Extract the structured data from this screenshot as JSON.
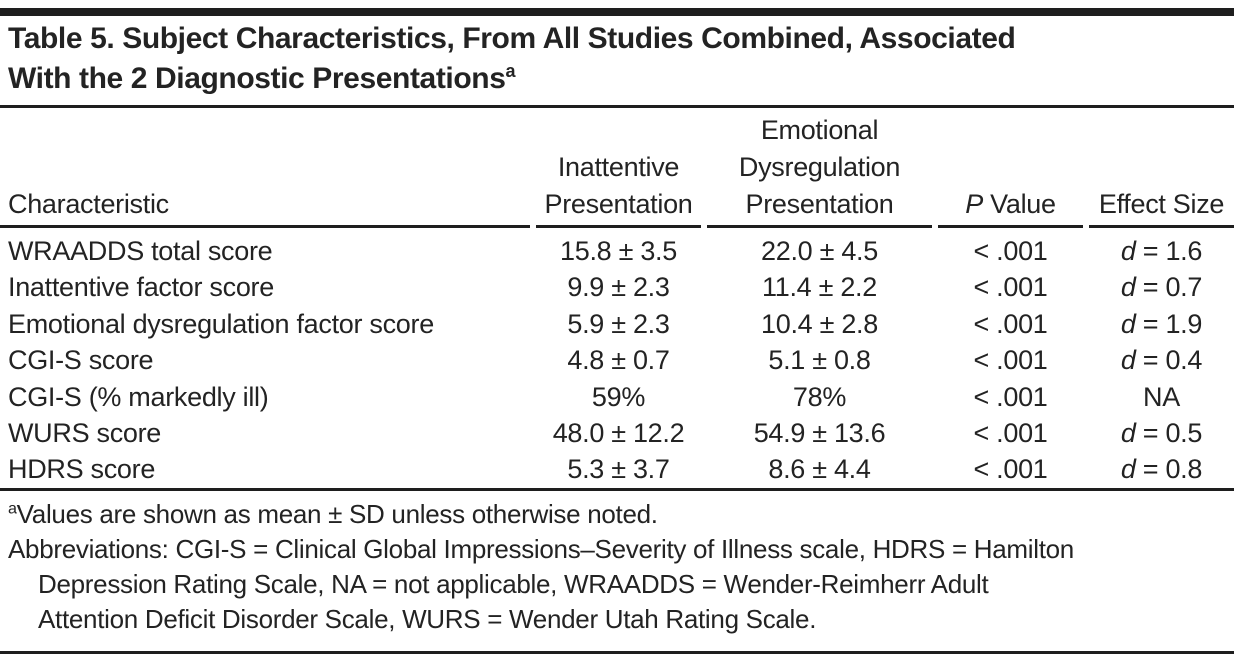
{
  "title": {
    "line1": "Table 5. Subject Characteristics, From All Studies Combined, Associated",
    "line2": "With the 2 Diagnostic Presentations",
    "superscript": "a"
  },
  "table": {
    "columns": {
      "characteristic": "Characteristic",
      "inattentive": "Inattentive\nPresentation",
      "emotional": "Emotional\nDysregulation\nPresentation",
      "p_value_italic": "P",
      "p_value_rest": " Value",
      "effect_size": "Effect Size"
    },
    "rows": [
      {
        "characteristic": "WRAADDS total score",
        "inattentive": "15.8 ± 3.5",
        "emotional": "22.0 ± 4.5",
        "p_value": "< .001",
        "effect_italic": "d",
        "effect_rest": " = 1.6"
      },
      {
        "characteristic": "Inattentive factor score",
        "inattentive": "9.9 ± 2.3",
        "emotional": "11.4 ± 2.2",
        "p_value": "< .001",
        "effect_italic": "d",
        "effect_rest": " = 0.7"
      },
      {
        "characteristic": "Emotional dysregulation factor score",
        "inattentive": "5.9 ± 2.3",
        "emotional": "10.4 ± 2.8",
        "p_value": "< .001",
        "effect_italic": "d",
        "effect_rest": " = 1.9"
      },
      {
        "characteristic": "CGI-S score",
        "inattentive": "4.8 ± 0.7",
        "emotional": "5.1 ± 0.8",
        "p_value": "< .001",
        "effect_italic": "d",
        "effect_rest": " = 0.4"
      },
      {
        "characteristic": "CGI-S (% markedly ill)",
        "inattentive": "59%",
        "emotional": "78%",
        "p_value": "< .001",
        "effect_italic": "",
        "effect_rest": "NA"
      },
      {
        "characteristic": "WURS score",
        "inattentive": "48.0 ± 12.2",
        "emotional": "54.9 ± 13.6",
        "p_value": "< .001",
        "effect_italic": "d",
        "effect_rest": " = 0.5"
      },
      {
        "characteristic": "HDRS score",
        "inattentive": "5.3 ± 3.7",
        "emotional": "8.6 ± 4.4",
        "p_value": "< .001",
        "effect_italic": "d",
        "effect_rest": " = 0.8"
      }
    ]
  },
  "footnotes": {
    "note_a_sup": "a",
    "note_a_text": "Values are shown as mean ± SD unless otherwise noted.",
    "abbreviations_lines": [
      "Abbreviations: CGI-S = Clinical Global Impressions–Severity of Illness scale, HDRS = Hamilton",
      "Depression Rating Scale, NA = not applicable, WRAADDS = Wender-Reimherr Adult",
      "Attention Deficit Disorder Scale, WURS = Wender Utah Rating Scale."
    ]
  },
  "colors": {
    "text": "#232323",
    "rule": "#1e1e1e",
    "background": "#ffffff"
  }
}
